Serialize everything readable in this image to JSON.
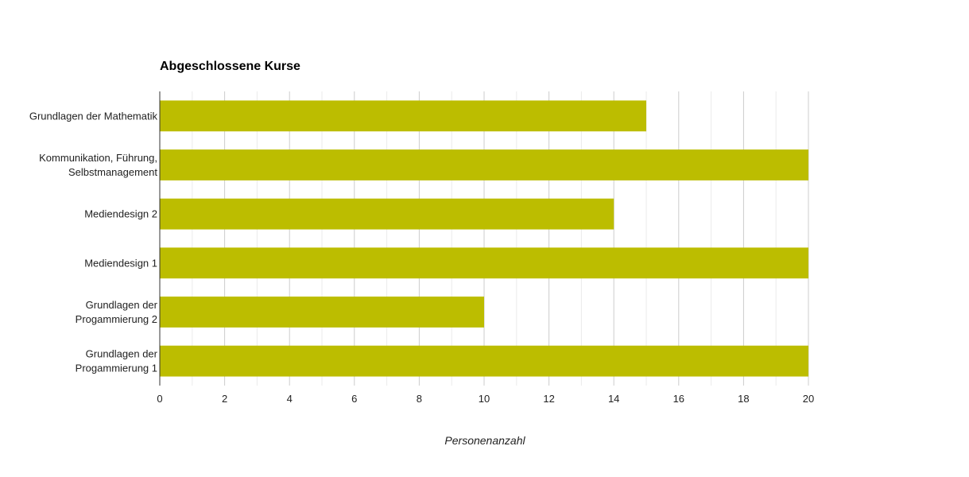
{
  "chart_data": {
    "type": "bar",
    "orientation": "horizontal",
    "title": "Abgeschlossene Kurse",
    "xlabel": "Personenanzahl",
    "ylabel": "",
    "categories": [
      [
        "Grundlagen der Mathematik"
      ],
      [
        "Kommunikation, Führung,",
        "Selbstmanagement"
      ],
      [
        "Mediendesign 2"
      ],
      [
        "Mediendesign 1"
      ],
      [
        "Grundlagen der",
        "Progammierung 2"
      ],
      [
        "Grundlagen der",
        "Progammierung 1"
      ]
    ],
    "values": [
      15,
      20,
      14,
      20,
      10,
      20
    ],
    "xlim": [
      0,
      20
    ],
    "xticks": [
      "0",
      "2",
      "4",
      "6",
      "8",
      "10",
      "12",
      "14",
      "16",
      "18",
      "20"
    ],
    "grid": true,
    "legend": "none",
    "bar_color": "#bcbd00",
    "grid_color": "#cccccc",
    "minor_grid_color": "#ebebeb",
    "axis_color": "#333333"
  }
}
